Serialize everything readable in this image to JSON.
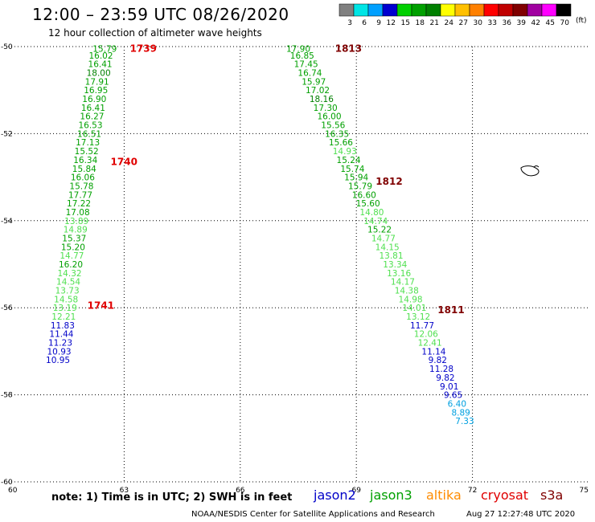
{
  "title": "12:00 – 23:59 UTC 08/26/2020",
  "subtitle": "12 hour collection of altimeter wave heights",
  "note": "note: 1) Time is in UTC; 2) SWH is in feet",
  "credit": "NOAA/NESDIS Center for Satellite Applications and Research",
  "timestamp": "Aug 27 12:27:48 UTC 2020",
  "color_scale": {
    "unit": "(ft)",
    "ticks": [
      "3",
      "6",
      "9",
      "12",
      "15",
      "18",
      "21",
      "24",
      "27",
      "30",
      "33",
      "36",
      "39",
      "42",
      "45",
      "70"
    ],
    "colors": [
      "#808080",
      "#00e5e5",
      "#00a0ff",
      "#0000d0",
      "#00d000",
      "#00a000",
      "#008000",
      "#ffff00",
      "#ffc000",
      "#ff8000",
      "#ff0000",
      "#c00000",
      "#800000",
      "#a000a0",
      "#ff00ff",
      "#000000"
    ]
  },
  "satellites": [
    {
      "name": "jason2",
      "color": "#0000c8"
    },
    {
      "name": "jason3",
      "color": "#00a000"
    },
    {
      "name": "altika",
      "color": "#ff8c00"
    },
    {
      "name": "cryosat",
      "color": "#e00000"
    },
    {
      "name": "s3a",
      "color": "#800000"
    }
  ],
  "chart_data": {
    "type": "scatter",
    "xlim": [
      60,
      75
    ],
    "ylim": [
      -60,
      -50
    ],
    "xticks": [
      60,
      63,
      66,
      69,
      72,
      75
    ],
    "yticks": [
      -50,
      -52,
      -54,
      -56,
      -58,
      -60
    ],
    "grid": true,
    "tracks": [
      {
        "points": [
          {
            "x": 62.5,
            "y": -50.05,
            "v": "15.79"
          },
          {
            "x": 62.4,
            "y": -50.2,
            "v": "16.02"
          },
          {
            "x": 62.38,
            "y": -50.4,
            "v": "16.41"
          },
          {
            "x": 62.34,
            "y": -50.6,
            "v": "18.00"
          },
          {
            "x": 62.3,
            "y": -50.8,
            "v": "17.91"
          },
          {
            "x": 62.27,
            "y": -51.0,
            "v": "16.95"
          },
          {
            "x": 62.23,
            "y": -51.2,
            "v": "16.90"
          },
          {
            "x": 62.2,
            "y": -51.4,
            "v": "16.41"
          },
          {
            "x": 62.17,
            "y": -51.6,
            "v": "16.27"
          },
          {
            "x": 62.13,
            "y": -51.8,
            "v": "16.53"
          },
          {
            "x": 62.1,
            "y": -52.0,
            "v": "16.51"
          },
          {
            "x": 62.06,
            "y": -52.2,
            "v": "17.13"
          },
          {
            "x": 62.03,
            "y": -52.4,
            "v": "15.52"
          },
          {
            "x": 62.0,
            "y": -52.6,
            "v": "16.34"
          },
          {
            "x": 61.97,
            "y": -52.8,
            "v": "15.84"
          },
          {
            "x": 61.93,
            "y": -53.0,
            "v": "16.06"
          },
          {
            "x": 61.9,
            "y": -53.2,
            "v": "15.78"
          },
          {
            "x": 61.87,
            "y": -53.4,
            "v": "17.77"
          },
          {
            "x": 61.83,
            "y": -53.6,
            "v": "17.22"
          },
          {
            "x": 61.8,
            "y": -53.8,
            "v": "17.08"
          },
          {
            "x": 61.77,
            "y": -54.0,
            "v": "13.89"
          },
          {
            "x": 61.74,
            "y": -54.2,
            "v": "14.89"
          },
          {
            "x": 61.71,
            "y": -54.4,
            "v": "15.37"
          },
          {
            "x": 61.68,
            "y": -54.6,
            "v": "15.20"
          },
          {
            "x": 61.65,
            "y": -54.8,
            "v": "14.77"
          },
          {
            "x": 61.62,
            "y": -55.0,
            "v": "16.20"
          },
          {
            "x": 61.59,
            "y": -55.2,
            "v": "14.32"
          },
          {
            "x": 61.56,
            "y": -55.4,
            "v": "14.54"
          },
          {
            "x": 61.53,
            "y": -55.6,
            "v": "13.73"
          },
          {
            "x": 61.5,
            "y": -55.8,
            "v": "14.58"
          },
          {
            "x": 61.47,
            "y": -56.0,
            "v": "13.19"
          },
          {
            "x": 61.44,
            "y": -56.2,
            "v": "12.21"
          },
          {
            "x": 61.41,
            "y": -56.4,
            "v": "11.83"
          },
          {
            "x": 61.38,
            "y": -56.6,
            "v": "11.44"
          },
          {
            "x": 61.35,
            "y": -56.8,
            "v": "11.23"
          },
          {
            "x": 61.32,
            "y": -57.0,
            "v": "10.93"
          },
          {
            "x": 61.29,
            "y": -57.2,
            "v": "10.95"
          }
        ],
        "passes": [
          {
            "label": "1739",
            "x": 63.15,
            "y": -50.05,
            "color": "#e00000"
          },
          {
            "label": "1740",
            "x": 62.65,
            "y": -52.65,
            "color": "#e00000"
          },
          {
            "label": "1741",
            "x": 62.05,
            "y": -55.95,
            "color": "#e00000"
          }
        ]
      },
      {
        "points": [
          {
            "x": 67.5,
            "y": -50.05,
            "v": "17.90"
          },
          {
            "x": 67.6,
            "y": -50.2,
            "v": "16.85"
          },
          {
            "x": 67.7,
            "y": -50.4,
            "v": "17.45"
          },
          {
            "x": 67.8,
            "y": -50.6,
            "v": "16.74"
          },
          {
            "x": 67.9,
            "y": -50.8,
            "v": "15.97"
          },
          {
            "x": 68.0,
            "y": -51.0,
            "v": "17.02"
          },
          {
            "x": 68.1,
            "y": -51.2,
            "v": "18.16"
          },
          {
            "x": 68.2,
            "y": -51.4,
            "v": "17.30"
          },
          {
            "x": 68.3,
            "y": -51.6,
            "v": "16.00"
          },
          {
            "x": 68.4,
            "y": -51.8,
            "v": "15.56"
          },
          {
            "x": 68.5,
            "y": -52.0,
            "v": "16.35"
          },
          {
            "x": 68.6,
            "y": -52.2,
            "v": "15.66"
          },
          {
            "x": 68.7,
            "y": -52.4,
            "v": "14.93"
          },
          {
            "x": 68.8,
            "y": -52.6,
            "v": "15.24"
          },
          {
            "x": 68.9,
            "y": -52.8,
            "v": "15.74"
          },
          {
            "x": 69.0,
            "y": -53.0,
            "v": "15.94"
          },
          {
            "x": 69.1,
            "y": -53.2,
            "v": "15.79"
          },
          {
            "x": 69.2,
            "y": -53.4,
            "v": "16.60"
          },
          {
            "x": 69.3,
            "y": -53.6,
            "v": "15.60"
          },
          {
            "x": 69.4,
            "y": -53.8,
            "v": "14.80"
          },
          {
            "x": 69.5,
            "y": -54.0,
            "v": "14.74"
          },
          {
            "x": 69.6,
            "y": -54.2,
            "v": "15.22"
          },
          {
            "x": 69.7,
            "y": -54.4,
            "v": "14.77"
          },
          {
            "x": 69.8,
            "y": -54.6,
            "v": "14.15"
          },
          {
            "x": 69.9,
            "y": -54.8,
            "v": "13.81"
          },
          {
            "x": 70.0,
            "y": -55.0,
            "v": "13.34"
          },
          {
            "x": 70.1,
            "y": -55.2,
            "v": "13.16"
          },
          {
            "x": 70.2,
            "y": -55.4,
            "v": "14.17"
          },
          {
            "x": 70.3,
            "y": -55.6,
            "v": "14.38"
          },
          {
            "x": 70.4,
            "y": -55.8,
            "v": "14.98"
          },
          {
            "x": 70.5,
            "y": -56.0,
            "v": "14.01"
          },
          {
            "x": 70.6,
            "y": -56.2,
            "v": "13.12"
          },
          {
            "x": 70.7,
            "y": -56.4,
            "v": "11.77"
          },
          {
            "x": 70.8,
            "y": -56.6,
            "v": "12.06"
          },
          {
            "x": 70.9,
            "y": -56.8,
            "v": "12.41"
          },
          {
            "x": 71.0,
            "y": -57.0,
            "v": "11.14"
          },
          {
            "x": 71.1,
            "y": -57.2,
            "v": "9.82"
          },
          {
            "x": 71.2,
            "y": -57.4,
            "v": "11.28"
          },
          {
            "x": 71.3,
            "y": -57.6,
            "v": "9.82"
          },
          {
            "x": 71.4,
            "y": -57.8,
            "v": "9.01"
          },
          {
            "x": 71.5,
            "y": -58.0,
            "v": "9.65"
          },
          {
            "x": 71.6,
            "y": -58.2,
            "v": "6.40"
          },
          {
            "x": 71.7,
            "y": -58.4,
            "v": "8.89"
          },
          {
            "x": 71.8,
            "y": -58.6,
            "v": "7.33"
          }
        ],
        "passes": [
          {
            "label": "1813",
            "x": 68.45,
            "y": -50.05,
            "color": "#800000"
          },
          {
            "label": "1812",
            "x": 69.5,
            "y": -53.1,
            "color": "#800000"
          },
          {
            "label": "1811",
            "x": 71.1,
            "y": -56.05,
            "color": "#800000"
          }
        ]
      }
    ]
  }
}
